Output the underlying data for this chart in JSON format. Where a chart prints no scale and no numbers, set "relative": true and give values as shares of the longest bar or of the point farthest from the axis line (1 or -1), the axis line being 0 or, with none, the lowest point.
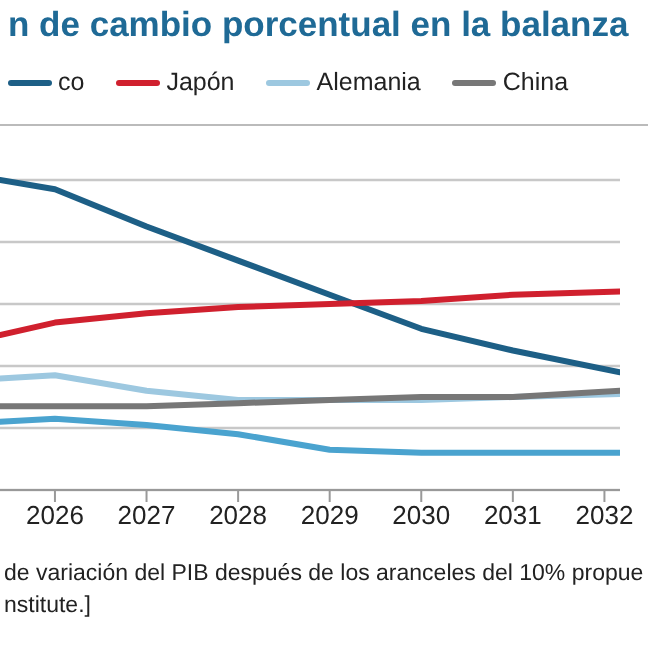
{
  "chart_data": {
    "type": "line",
    "title": "n de cambio porcentual en la balanza",
    "relative": true,
    "x": [
      2025.4,
      2026,
      2027,
      2028,
      2029,
      2030,
      2031,
      2032.17
    ],
    "xlim": [
      2025.4,
      2032.17
    ],
    "xticks": [
      2026,
      2027,
      2028,
      2029,
      2030,
      2031,
      2032
    ],
    "grid": "y",
    "legend": "top",
    "series": [
      {
        "name": "co",
        "color": "#1d5f86",
        "values": [
          1,
          0.97,
          0.85,
          0.74,
          0.63,
          0.52,
          0.45,
          0.38
        ]
      },
      {
        "name": "Japón",
        "color": "#d0202e",
        "values": [
          0.5,
          0.54,
          0.57,
          0.59,
          0.6,
          0.61,
          0.63,
          0.64
        ]
      },
      {
        "name": "Alemania",
        "color": "#9dc8e0",
        "values": [
          0.36,
          0.37,
          0.32,
          0.29,
          0.29,
          0.29,
          0.3,
          0.31
        ]
      },
      {
        "name": "China",
        "color": "#777777",
        "values": [
          0.27,
          0.27,
          0.27,
          0.28,
          0.29,
          0.3,
          0.3,
          0.32
        ]
      },
      {
        "color": "#4aa3cf",
        "values": [
          0.22,
          0.23,
          0.21,
          0.18,
          0.13,
          0.12,
          0.12,
          0.12
        ]
      }
    ],
    "annotations": [
      "de variación del PIB después de los aranceles del 10% propue",
      "nstitute.]"
    ]
  }
}
